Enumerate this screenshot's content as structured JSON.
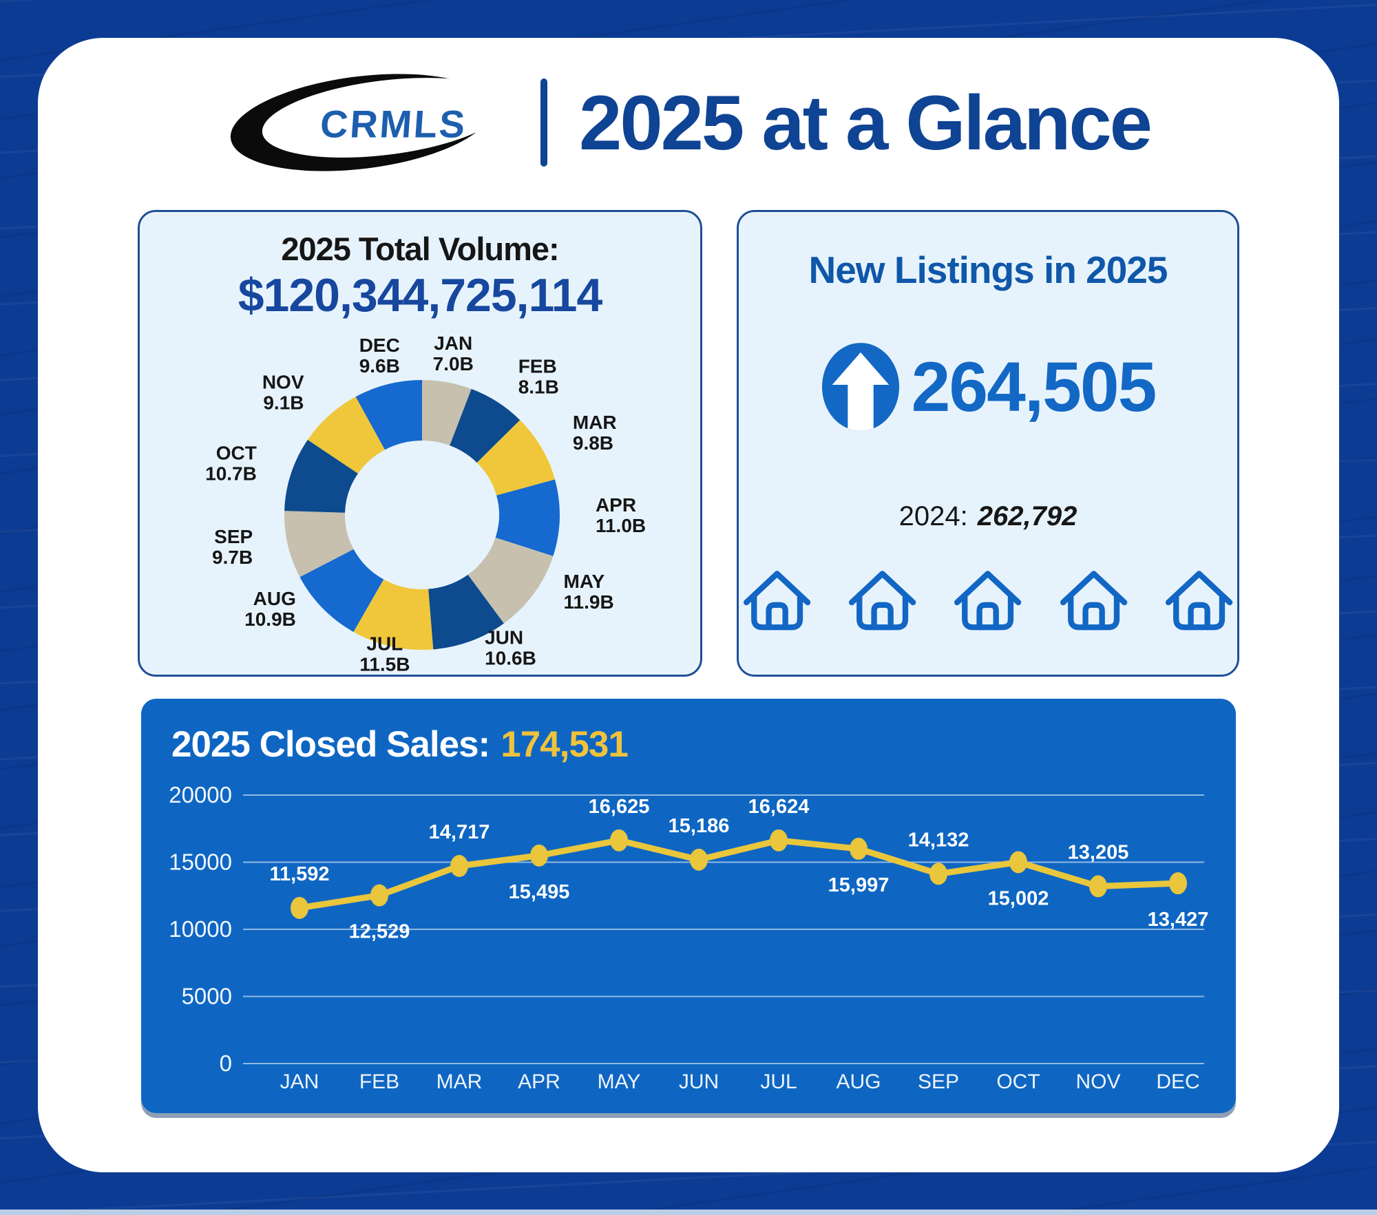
{
  "header": {
    "logo_text": "CRMLS",
    "title": "2025 at a Glance"
  },
  "total_volume_panel": {
    "title": "2025 Total Volume:",
    "amount": "$120,344,725,114"
  },
  "new_listings_panel": {
    "title": "New Listings in 2025",
    "count": "264,505",
    "previous_year_label": "2024:",
    "previous_year_value": "262,792",
    "house_icon_count": 5
  },
  "closed_sales_panel": {
    "title": "2025 Closed Sales:",
    "total": "174,531"
  },
  "colors": {
    "page_background": "#0c3b94",
    "card_background": "#ffffff",
    "panel_background": "#e7f3fc",
    "panel_border": "#1e4f96",
    "title_blue": "#0f4393",
    "navy_text": "#17479e",
    "accent_blue": "#1268c4",
    "sales_panel_background": "#0e66c2",
    "line_yellow": "#e9c63c",
    "heading_yellow": "#f0c23d",
    "donut_tan": "#c7c0ae",
    "donut_navy": "#0d4a8e",
    "donut_yellow": "#f0c73a",
    "donut_blue": "#1569cf"
  },
  "chart_data": [
    {
      "type": "pie",
      "variant": "donut",
      "title": "2025 Total Volume by Month",
      "categories": [
        "JAN",
        "FEB",
        "MAR",
        "APR",
        "MAY",
        "JUN",
        "JUL",
        "AUG",
        "SEP",
        "OCT",
        "NOV",
        "DEC"
      ],
      "values": [
        7.0,
        8.1,
        9.8,
        11.0,
        11.9,
        10.6,
        11.5,
        10.9,
        9.7,
        10.7,
        9.1,
        9.6
      ],
      "value_labels": [
        "7.0B",
        "8.1B",
        "9.8B",
        "11.0B",
        "11.9B",
        "10.6B",
        "11.5B",
        "10.9B",
        "9.7B",
        "10.7B",
        "9.1B",
        "9.6B"
      ],
      "slice_colors": [
        "#c7c0ae",
        "#0d4a8e",
        "#f0c73a",
        "#1569cf",
        "#c7c0ae",
        "#0d4a8e",
        "#f0c73a",
        "#1569cf",
        "#c7c0ae",
        "#0d4a8e",
        "#f0c73a",
        "#1569cf"
      ],
      "label_color": "#161616"
    },
    {
      "type": "line",
      "title": "2025 Closed Sales by Month",
      "x": [
        "JAN",
        "FEB",
        "MAR",
        "APR",
        "MAY",
        "JUN",
        "JUL",
        "AUG",
        "SEP",
        "OCT",
        "NOV",
        "DEC"
      ],
      "values": [
        11592,
        12529,
        14717,
        15495,
        16625,
        15186,
        16624,
        15997,
        14132,
        15002,
        13205,
        13427
      ],
      "point_labels": [
        "11,592",
        "12,529",
        "14,717",
        "15,495",
        "16,625",
        "15,186",
        "16,624",
        "15,997",
        "14,132",
        "15,002",
        "13,205",
        "13,427"
      ],
      "label_positions": [
        "above",
        "below",
        "above",
        "below",
        "above",
        "above",
        "above",
        "below",
        "above",
        "below",
        "above",
        "below"
      ],
      "ylim": [
        0,
        20000
      ],
      "yticks": [
        0,
        5000,
        10000,
        15000,
        20000
      ],
      "grid": true,
      "legend": false,
      "line_color": "#e9c63c",
      "text_color": "#ffffff"
    }
  ]
}
